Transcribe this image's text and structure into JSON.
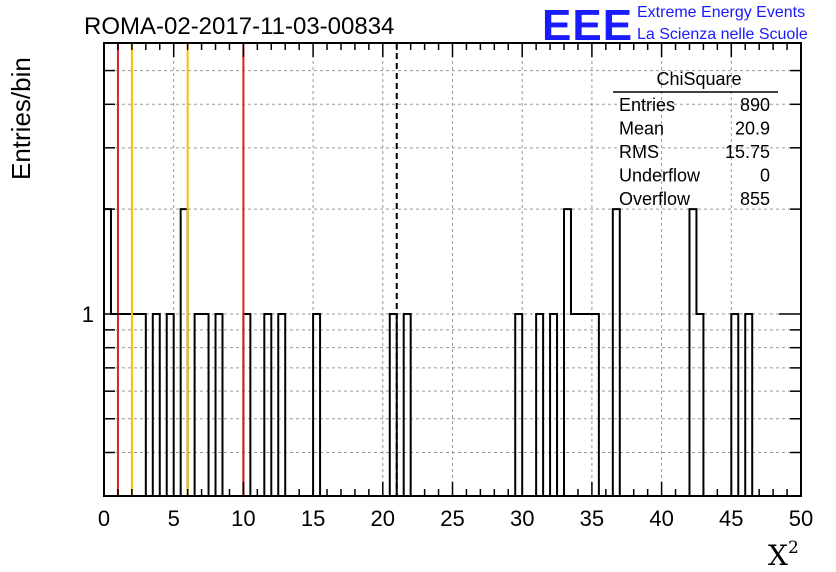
{
  "header": {
    "title": "ROMA-02-2017-11-03-00834",
    "logo_text": "EEE",
    "logo_line1": "Extreme Energy Events",
    "logo_line2": "La Scienza nelle Scuole",
    "logo_color": "#1a1aff"
  },
  "chart_data": {
    "type": "bar",
    "histogram": true,
    "xlabel": "X",
    "xlabel_superscript": "2",
    "ylabel": "Entries/bin",
    "xlim": [
      0,
      50
    ],
    "ylim": [
      0.3,
      6
    ],
    "yscale": "log",
    "grid": true,
    "xticks": [
      0,
      5,
      10,
      15,
      20,
      25,
      30,
      35,
      40,
      45,
      50
    ],
    "yticks": [
      1
    ],
    "bin_width": 0.5,
    "bins": [
      {
        "x": 0.0,
        "y": 2
      },
      {
        "x": 0.5,
        "y": 1
      },
      {
        "x": 1.0,
        "y": 1
      },
      {
        "x": 1.5,
        "y": 1
      },
      {
        "x": 2.0,
        "y": 1
      },
      {
        "x": 2.5,
        "y": 1
      },
      {
        "x": 3.5,
        "y": 1
      },
      {
        "x": 4.5,
        "y": 1
      },
      {
        "x": 5.5,
        "y": 2
      },
      {
        "x": 6.5,
        "y": 1
      },
      {
        "x": 7.0,
        "y": 1
      },
      {
        "x": 8.0,
        "y": 1
      },
      {
        "x": 10.0,
        "y": 1
      },
      {
        "x": 11.5,
        "y": 1
      },
      {
        "x": 12.5,
        "y": 1
      },
      {
        "x": 15.0,
        "y": 1
      },
      {
        "x": 20.5,
        "y": 1
      },
      {
        "x": 21.5,
        "y": 1
      },
      {
        "x": 29.5,
        "y": 1
      },
      {
        "x": 31.0,
        "y": 1
      },
      {
        "x": 32.0,
        "y": 1
      },
      {
        "x": 33.0,
        "y": 2
      },
      {
        "x": 33.5,
        "y": 1
      },
      {
        "x": 34.0,
        "y": 1
      },
      {
        "x": 34.5,
        "y": 1
      },
      {
        "x": 35.0,
        "y": 1
      },
      {
        "x": 36.5,
        "y": 2
      },
      {
        "x": 42.0,
        "y": 2
      },
      {
        "x": 42.5,
        "y": 1
      },
      {
        "x": 45.0,
        "y": 1
      },
      {
        "x": 46.0,
        "y": 1
      }
    ],
    "vertical_lines": [
      {
        "x": 1.0,
        "color": "#e02020",
        "style": "solid"
      },
      {
        "x": 2.0,
        "color": "#f5c000",
        "style": "solid"
      },
      {
        "x": 6.0,
        "color": "#f5c000",
        "style": "solid"
      },
      {
        "x": 10.0,
        "color": "#e02020",
        "style": "solid"
      },
      {
        "x": 21.0,
        "color": "#000000",
        "style": "dashed"
      }
    ],
    "stats_box": {
      "title": "ChiSquare",
      "rows": [
        {
          "label": "Entries",
          "value": "890"
        },
        {
          "label": "Mean",
          "value": "20.9"
        },
        {
          "label": "RMS",
          "value": "15.75"
        },
        {
          "label": "Underflow",
          "value": "0"
        },
        {
          "label": "Overflow",
          "value": "855"
        }
      ]
    }
  }
}
